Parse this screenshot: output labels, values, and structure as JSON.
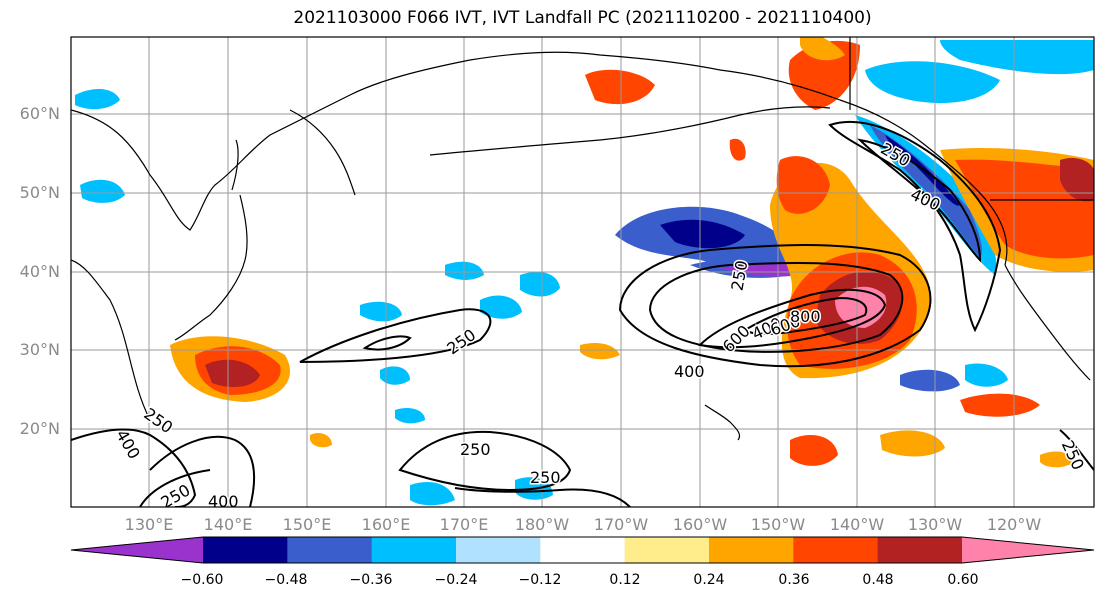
{
  "title": "2021103000 F066 IVT, IVT Landfall PC (2021110200 - 2021110400)",
  "lat_labels": [
    "60°N",
    "50°N",
    "40°N",
    "30°N",
    "20°N"
  ],
  "lon_labels": [
    "130°E",
    "140°E",
    "150°E",
    "160°E",
    "170°E",
    "180°W",
    "170°W",
    "160°W",
    "150°W",
    "140°W",
    "130°W",
    "120°W"
  ],
  "contour_labels": [
    "250",
    "250",
    "250",
    "250",
    "250",
    "250",
    "400",
    "400",
    "400",
    "400",
    "400",
    "600",
    "600",
    "800",
    "250",
    "250"
  ],
  "colorbar": {
    "ticks": [
      "−0.60",
      "−0.48",
      "−0.36",
      "−0.24",
      "−0.12",
      "0.12",
      "0.24",
      "0.36",
      "0.48",
      "0.60"
    ],
    "colors": [
      "#9a32cd",
      "#00008b",
      "#3a5fcd",
      "#00bfff",
      "#b0e2ff",
      "#ffffff",
      "#ffec8b",
      "#ffa500",
      "#ff4500",
      "#b22222",
      "#ff82ab"
    ]
  }
}
